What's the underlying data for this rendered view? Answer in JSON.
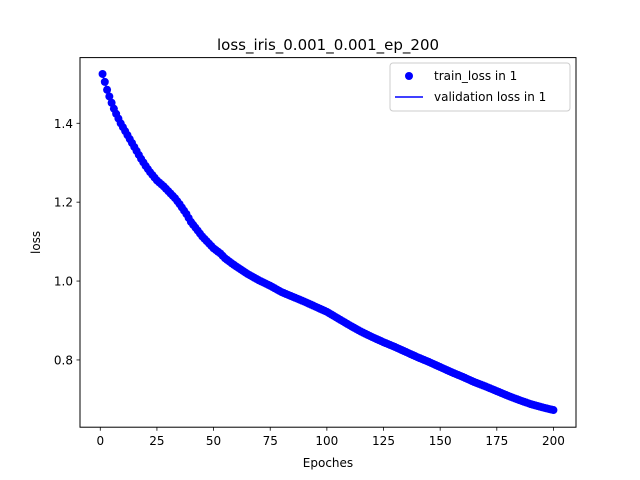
{
  "chart_data": {
    "type": "line",
    "title": "loss_iris_0.001_0.001_ep_200",
    "xlabel": "Epoches",
    "ylabel": "loss",
    "xlim": [
      -8.95,
      209.95
    ],
    "ylim": [
      0.6295,
      1.5665
    ],
    "xticks": [
      0,
      25,
      50,
      75,
      100,
      125,
      150,
      175,
      200
    ],
    "yticks": [
      0.8,
      1.0,
      1.2,
      1.4
    ],
    "ytick_labels": [
      "0.8",
      "1.0",
      "1.2",
      "1.4"
    ],
    "grid": false,
    "legend": {
      "location": "upper right",
      "entries": [
        "train_loss in 1",
        "validation loss in 1"
      ]
    },
    "series": [
      {
        "name": "train_loss in 1",
        "style": "markers",
        "color": "#0000ff",
        "x": [
          1,
          2,
          3,
          4,
          5,
          6,
          7,
          8,
          9,
          10,
          12,
          14,
          16,
          18,
          20,
          22,
          25,
          28,
          30,
          33,
          35,
          38,
          40,
          43,
          45,
          48,
          50,
          53,
          55,
          58,
          60,
          65,
          70,
          75,
          80,
          85,
          90,
          95,
          100,
          105,
          110,
          115,
          120,
          125,
          130,
          135,
          140,
          145,
          150,
          155,
          160,
          165,
          170,
          175,
          180,
          185,
          190,
          195,
          200
        ],
        "y": [
          1.525,
          1.505,
          1.485,
          1.468,
          1.452,
          1.437,
          1.424,
          1.412,
          1.4,
          1.39,
          1.37,
          1.35,
          1.33,
          1.31,
          1.292,
          1.276,
          1.255,
          1.24,
          1.228,
          1.21,
          1.195,
          1.17,
          1.15,
          1.128,
          1.113,
          1.095,
          1.083,
          1.07,
          1.058,
          1.045,
          1.037,
          1.018,
          1.002,
          0.988,
          0.972,
          0.96,
          0.948,
          0.935,
          0.922,
          0.905,
          0.888,
          0.872,
          0.858,
          0.845,
          0.833,
          0.82,
          0.807,
          0.795,
          0.782,
          0.769,
          0.757,
          0.744,
          0.733,
          0.721,
          0.709,
          0.698,
          0.688,
          0.68,
          0.673
        ]
      },
      {
        "name": "validation loss in 1",
        "style": "line",
        "color": "#0000ff",
        "x": [
          1,
          2,
          3,
          4,
          5,
          6,
          7,
          8,
          9,
          10,
          12,
          14,
          16,
          18,
          20,
          22,
          25,
          28,
          30,
          33,
          35,
          38,
          40,
          43,
          45,
          48,
          50,
          53,
          55,
          58,
          60,
          65,
          70,
          75,
          80,
          85,
          90,
          95,
          100,
          105,
          110,
          115,
          120,
          125,
          130,
          135,
          140,
          145,
          150,
          155,
          160,
          165,
          170,
          175,
          180,
          185,
          190,
          195,
          200
        ],
        "y": [
          1.525,
          1.505,
          1.485,
          1.468,
          1.452,
          1.437,
          1.424,
          1.412,
          1.4,
          1.39,
          1.37,
          1.35,
          1.33,
          1.31,
          1.292,
          1.276,
          1.255,
          1.24,
          1.228,
          1.21,
          1.195,
          1.17,
          1.15,
          1.128,
          1.113,
          1.095,
          1.083,
          1.07,
          1.058,
          1.045,
          1.037,
          1.018,
          1.002,
          0.988,
          0.972,
          0.96,
          0.948,
          0.935,
          0.922,
          0.905,
          0.888,
          0.872,
          0.858,
          0.845,
          0.833,
          0.82,
          0.807,
          0.795,
          0.782,
          0.769,
          0.757,
          0.744,
          0.733,
          0.721,
          0.709,
          0.698,
          0.688,
          0.68,
          0.673
        ]
      }
    ]
  }
}
